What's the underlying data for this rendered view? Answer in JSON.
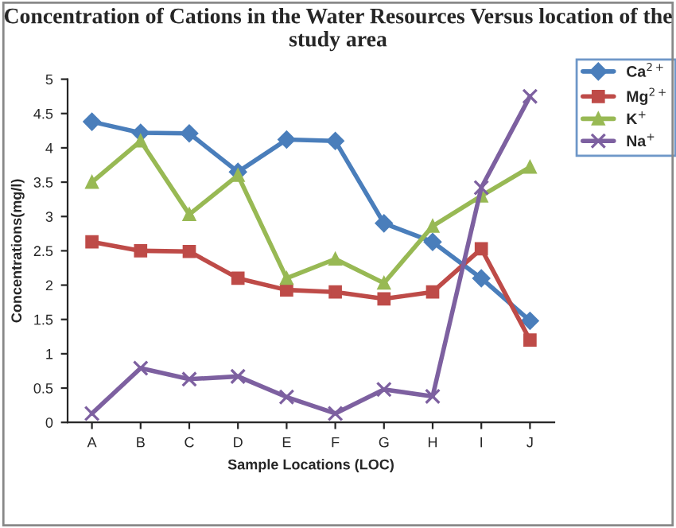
{
  "chart_data": {
    "type": "line",
    "title": "Concentration of Cations in the Water Resources Versus location of the study area",
    "xlabel": "Sample Locations (LOC)",
    "ylabel": "Concentrations(mg/l)",
    "categories": [
      "A",
      "B",
      "C",
      "D",
      "E",
      "F",
      "G",
      "H",
      "I",
      "J"
    ],
    "series": [
      {
        "name": "Ca$^{2+}$",
        "color": "#4a7ebb",
        "marker": "diamond",
        "values": [
          4.38,
          4.22,
          4.21,
          3.65,
          4.12,
          4.1,
          2.9,
          2.63,
          2.1,
          1.48
        ]
      },
      {
        "name": "Mg$^{2+}$",
        "color": "#be4b48",
        "marker": "square",
        "values": [
          2.63,
          2.5,
          2.49,
          2.1,
          1.93,
          1.9,
          1.8,
          1.9,
          2.53,
          1.2
        ]
      },
      {
        "name": "K$^{+}$",
        "color": "#98b954",
        "marker": "triangle",
        "values": [
          3.5,
          4.1,
          3.03,
          3.6,
          2.1,
          2.38,
          2.03,
          2.86,
          3.3,
          3.72
        ]
      },
      {
        "name": "Na$^{+}$",
        "color": "#7d60a0",
        "marker": "cross",
        "values": [
          0.13,
          0.79,
          0.63,
          0.67,
          0.37,
          0.13,
          0.48,
          0.38,
          3.42,
          4.75
        ]
      }
    ],
    "ylim": [
      0,
      5
    ],
    "yticks": [
      0,
      0.5,
      1,
      1.5,
      2,
      2.5,
      3,
      3.5,
      4,
      4.5,
      5
    ],
    "grid": false,
    "legend": "right"
  }
}
